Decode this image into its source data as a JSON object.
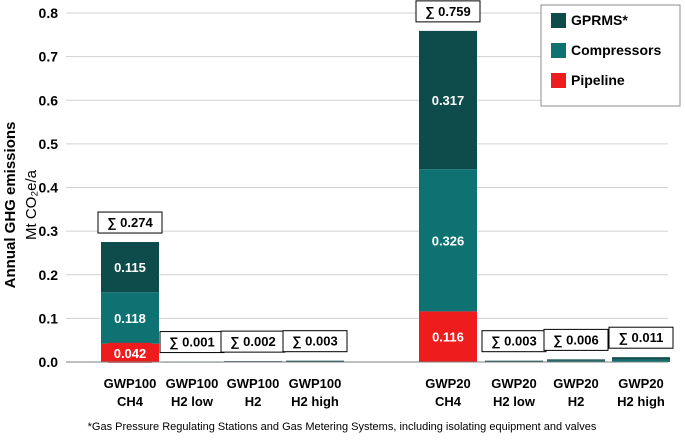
{
  "chart_data": {
    "type": "bar",
    "stacked": true,
    "ylabel_line1": "Annual GHG emissions",
    "ylabel_line2": "Mt CO₂e/a",
    "ylim": [
      0,
      0.8
    ],
    "yticks": [
      "0.0",
      "0.1",
      "0.2",
      "0.3",
      "0.4",
      "0.5",
      "0.6",
      "0.7",
      "0.8"
    ],
    "grid": true,
    "legend_position": "top-right",
    "categories": [
      {
        "line1": "GWP100",
        "line2": "CH4"
      },
      {
        "line1": "GWP100",
        "line2": "H2 low"
      },
      {
        "line1": "GWP100",
        "line2": "H2"
      },
      {
        "line1": "GWP100",
        "line2": "H2 high"
      },
      {
        "line1": "GWP20",
        "line2": "CH4"
      },
      {
        "line1": "GWP20",
        "line2": "H2 low"
      },
      {
        "line1": "GWP20",
        "line2": "H2"
      },
      {
        "line1": "GWP20",
        "line2": "H2 high"
      }
    ],
    "series": [
      {
        "name": "Pipeline",
        "color": "#ee1c1c",
        "values": [
          0.042,
          0,
          0,
          0,
          0.116,
          0,
          0,
          0
        ],
        "labels": [
          "0.042",
          "",
          "",
          "",
          "0.116",
          "",
          "",
          ""
        ]
      },
      {
        "name": "Compressors",
        "color": "#0e7272",
        "values": [
          0.118,
          0.0005,
          0.001,
          0.0015,
          0.326,
          0.0015,
          0.003,
          0.0055
        ],
        "labels": [
          "0.118",
          "",
          "",
          "",
          "0.326",
          "",
          "",
          ""
        ]
      },
      {
        "name": "GPRMS*",
        "color": "#0e4b4b",
        "values": [
          0.115,
          0.0005,
          0.001,
          0.0015,
          0.317,
          0.0015,
          0.003,
          0.0055
        ],
        "labels": [
          "0.115",
          "",
          "",
          "",
          "0.317",
          "",
          "",
          ""
        ]
      }
    ],
    "totals": [
      "∑ 0.274",
      "∑ 0.001",
      "∑ 0.002",
      "∑ 0.003",
      "∑ 0.759",
      "∑ 0.003",
      "∑ 0.006",
      "∑ 0.011"
    ],
    "legend": [
      "GPRMS*",
      "Compressors",
      "Pipeline"
    ],
    "footnote": "*Gas Pressure Regulating Stations and Gas Metering Systems, including isolating equipment and valves"
  },
  "colors": {
    "grid": "#d0d0d0",
    "axis": "#7f7f7f",
    "label_text": "#ffffff",
    "total_box_border": "#000000"
  }
}
